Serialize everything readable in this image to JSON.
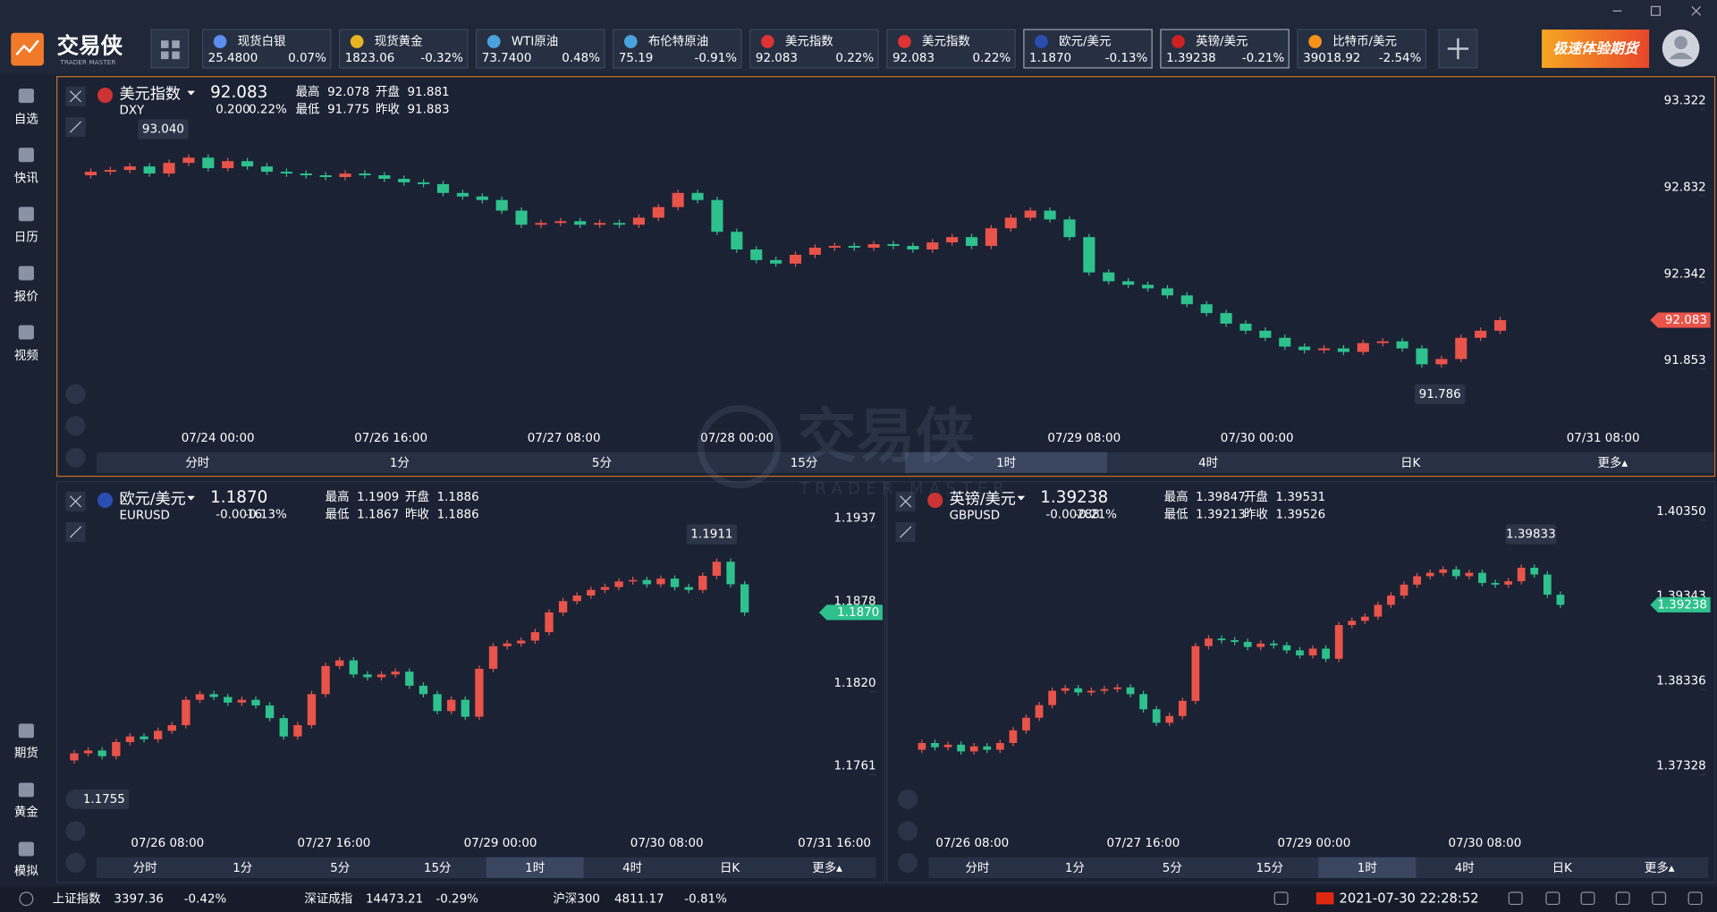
{
  "app": {
    "logo": "交易侠",
    "logo_sub": "TRADER MASTER",
    "banner": "极速体验期货"
  },
  "tickers": [
    {
      "name": "现货白银",
      "price": "25.4800",
      "change": "0.07%"
    },
    {
      "name": "现货黄金",
      "price": "1823.06",
      "change": "-0.32%"
    },
    {
      "name": "WTI原油",
      "price": "73.7400",
      "change": "0.48%"
    },
    {
      "name": "布伦特原油",
      "price": "75.19",
      "change": "-0.91%"
    },
    {
      "name": "美元指数",
      "price": "92.083",
      "change": "0.22%"
    },
    {
      "name": "美元指数",
      "price": "92.083",
      "change": "0.22%"
    },
    {
      "name": "欧元/美元",
      "price": "1.1870",
      "change": "-0.13%"
    },
    {
      "name": "英镑/美元",
      "price": "1.39238",
      "change": "-0.21%"
    },
    {
      "name": "比特币/美元",
      "price": "39018.92",
      "change": "-2.54%"
    }
  ],
  "sidebar": {
    "top": [
      "自选",
      "快讯",
      "日历",
      "报价",
      "视频"
    ],
    "bottom": [
      "期货",
      "黄金",
      "模拟"
    ]
  },
  "watermark": {
    "title": "交易侠",
    "subtitle": "TRADER MASTER"
  },
  "stat_labels": [
    "最高",
    "开盘",
    "最低",
    "昨收"
  ],
  "timeframes": [
    "分时",
    "1分",
    "5分",
    "15分",
    "1时",
    "4时",
    "日K",
    "更多▴"
  ],
  "active_timeframe": 4,
  "panels": [
    {
      "type": "candlestick",
      "name": "美元指数",
      "code": "DXY",
      "price": "92.083",
      "change": "0.200",
      "change_pct": "0.22%",
      "stats": [
        "92.078",
        "91.881",
        "91.775",
        "91.883"
      ],
      "stat_colors": [
        "#e8534a",
        "#2ec08d",
        "#2ec08d",
        "#ffffff"
      ],
      "high_mark": "93.040",
      "low_mark": "91.786",
      "x_labels": [
        "07/24 00:00",
        "07/26 16:00",
        "07/27 08:00",
        "07/28 00:00",
        "07/29 08:00",
        "07/30 00:00",
        "07/31 08:00"
      ],
      "ylim": [
        91.475,
        93.446
      ],
      "yticks": [
        93.322,
        92.832,
        92.342,
        91.853
      ],
      "closes": [
        92.9,
        92.92,
        92.93,
        92.95,
        92.91,
        92.97,
        93.0,
        92.94,
        92.98,
        92.95,
        92.92,
        92.91,
        92.9,
        92.89,
        92.91,
        92.9,
        92.88,
        92.86,
        92.85,
        92.8,
        92.78,
        92.76,
        92.7,
        92.62,
        92.63,
        92.64,
        92.62,
        92.63,
        92.62,
        92.66,
        92.72,
        92.8,
        92.76,
        92.58,
        92.48,
        92.42,
        92.4,
        92.45,
        92.49,
        92.5,
        92.49,
        92.51,
        92.5,
        92.48,
        92.52,
        92.55,
        92.5,
        92.6,
        92.66,
        92.7,
        92.65,
        92.55,
        92.35,
        92.3,
        92.28,
        92.26,
        92.22,
        92.17,
        92.12,
        92.06,
        92.02,
        91.98,
        91.93,
        91.91,
        91.92,
        91.9,
        91.95,
        91.96,
        91.92,
        91.83,
        91.86,
        91.98,
        92.02,
        92.08
      ]
    },
    {
      "type": "candlestick",
      "name": "欧元/美元",
      "code": "EURUSD",
      "price": "1.1870",
      "change": "-0.0016",
      "change_pct": "-0.13%",
      "stats": [
        "1.1909",
        "1.1886",
        "1.1867",
        "1.1886"
      ],
      "stat_colors": [
        "#e8534a",
        "#ffffff",
        "#2ec08d",
        "#ffffff"
      ],
      "high_mark": "1.1911",
      "low_mark": "1.1755",
      "x_labels": [
        "07/26 08:00",
        "07/27 16:00",
        "07/29 00:00",
        "07/30 08:00",
        "07/31 16:00"
      ],
      "ylim": [
        1.1718,
        1.1955
      ],
      "yticks": [
        1.1937,
        1.1878,
        {
          "value": 1.182,
          "label": "1.1820"
        },
        1.1761
      ],
      "closes": [
        1.1765,
        1.177,
        1.1772,
        1.1768,
        1.1778,
        1.1782,
        1.178,
        1.1786,
        1.179,
        1.1808,
        1.1812,
        1.181,
        1.1806,
        1.1808,
        1.1804,
        1.1795,
        1.1782,
        1.179,
        1.1812,
        1.1832,
        1.1836,
        1.1826,
        1.1824,
        1.1826,
        1.1828,
        1.1818,
        1.1812,
        1.18,
        1.1808,
        1.1796,
        1.183,
        1.1846,
        1.1848,
        1.185,
        1.1856,
        1.187,
        1.1878,
        1.1882,
        1.1886,
        1.1888,
        1.1892,
        1.1893,
        1.189,
        1.1894,
        1.1888,
        1.1886,
        1.1896,
        1.1906,
        1.189,
        1.187
      ]
    },
    {
      "type": "candlestick",
      "name": "英镑/美元",
      "code": "GBPUSD",
      "price": "1.39238",
      "change": "-0.00288",
      "change_pct": "-0.21%",
      "stats": [
        "1.39847",
        "1.39531",
        "1.39213",
        "1.39526"
      ],
      "stat_colors": [
        "#e8534a",
        "#e8534a",
        "#2ec08d",
        "#ffffff"
      ],
      "high_mark": "1.39833",
      "x_labels": [
        "07/26 08:00",
        "07/27 16:00",
        "07/29 00:00",
        "07/30 08:00"
      ],
      "ylim": [
        1.36608,
        1.40571
      ],
      "yticks": [
        {
          "value": 1.4035,
          "label": "1.40350"
        },
        1.39343,
        1.38336,
        1.37328
      ],
      "closes": [
        1.3752,
        1.376,
        1.3755,
        1.3758,
        1.375,
        1.3756,
        1.3752,
        1.376,
        1.3775,
        1.379,
        1.3805,
        1.3822,
        1.3825,
        1.382,
        1.3822,
        1.3824,
        1.3826,
        1.3818,
        1.38,
        1.3784,
        1.3792,
        1.381,
        1.3875,
        1.3884,
        1.3882,
        1.388,
        1.3874,
        1.3878,
        1.3876,
        1.387,
        1.3864,
        1.3872,
        1.386,
        1.39,
        1.3905,
        1.391,
        1.3924,
        1.3935,
        1.3948,
        1.3958,
        1.3962,
        1.3966,
        1.3958,
        1.3962,
        1.395,
        1.3948,
        1.3952,
        1.3968,
        1.396,
        1.3936,
        1.3924
      ]
    }
  ],
  "status": {
    "indices": [
      {
        "name": "上证指数",
        "value": "3397.36",
        "change": "-0.42%"
      },
      {
        "name": "深证成指",
        "value": "14473.21",
        "change": "-0.29%"
      },
      {
        "name": "沪深300",
        "value": "4811.17",
        "change": "-0.81%"
      }
    ],
    "time": "2021-07-30 22:28:52"
  }
}
